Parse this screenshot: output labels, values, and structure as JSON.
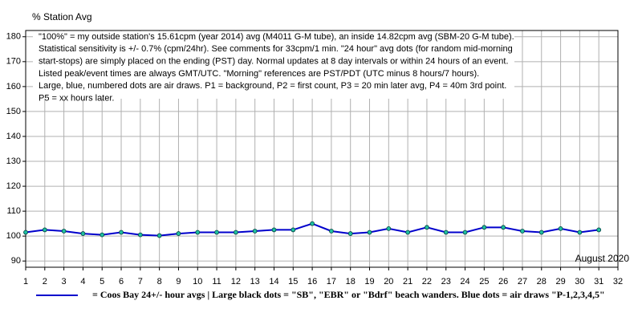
{
  "chart_data": {
    "type": "line",
    "title": "% Station Avg",
    "annotation": "August 2020",
    "notes": [
      "\"100%\" = my outside station's 15.61cpm (year 2014) avg (M4011 G-M tube), an inside 14.82cpm avg (SBM-20 G-M tube).",
      "Statistical sensitivity is +/- 0.7% (cpm/24hr). See comments for 33cpm/1 min. \"24 hour\" avg dots (for random mid-morning",
      "start-stops) are simply placed on the ending (PST) day. Normal updates at 8 day intervals or within 24 hours of an event.",
      "Listed peak/event times are always GMT/UTC.  \"Morning\" references are PST/PDT (UTC minus 8 hours/7 hours).",
      "Large, blue, numbered dots are air draws. P1 = background, P2 = first count, P3 = 20 min later avg, P4 = 40m 3rd point.",
      "P5 = xx hours later."
    ],
    "x": [
      1,
      2,
      3,
      4,
      5,
      6,
      7,
      8,
      9,
      10,
      11,
      12,
      13,
      14,
      15,
      16,
      17,
      18,
      19,
      20,
      21,
      22,
      23,
      24,
      25,
      26,
      27,
      28,
      29,
      30,
      31
    ],
    "series": [
      {
        "name": "= Coos Bay 24+/- hour avgs | Large black dots = \"SB\", \"EBR\" or \"Bdrf\" beach wanders. Blue dots = air draws \"P-1,2,3,4,5\"",
        "color": "#0000cc",
        "marker_color": "#20c0a0",
        "values": [
          101.5,
          102.5,
          102,
          101,
          100.5,
          101.5,
          100.5,
          100.2,
          101,
          101.5,
          101.5,
          101.5,
          102,
          102.5,
          102.5,
          105,
          102,
          101,
          101.5,
          103,
          101.5,
          103.5,
          101.5,
          101.5,
          103.5,
          103.5,
          102,
          101.5,
          103,
          101.5,
          102.5
        ]
      }
    ],
    "xlim": [
      1,
      32
    ],
    "xticks": [
      1,
      2,
      3,
      4,
      5,
      6,
      7,
      8,
      9,
      10,
      11,
      12,
      13,
      14,
      15,
      16,
      17,
      18,
      19,
      20,
      21,
      22,
      23,
      24,
      25,
      26,
      27,
      28,
      29,
      30,
      31,
      32
    ],
    "ylim": [
      87.5,
      182.5
    ],
    "yticks": [
      90,
      100,
      110,
      120,
      130,
      140,
      150,
      160,
      170,
      180
    ],
    "grid": true
  }
}
